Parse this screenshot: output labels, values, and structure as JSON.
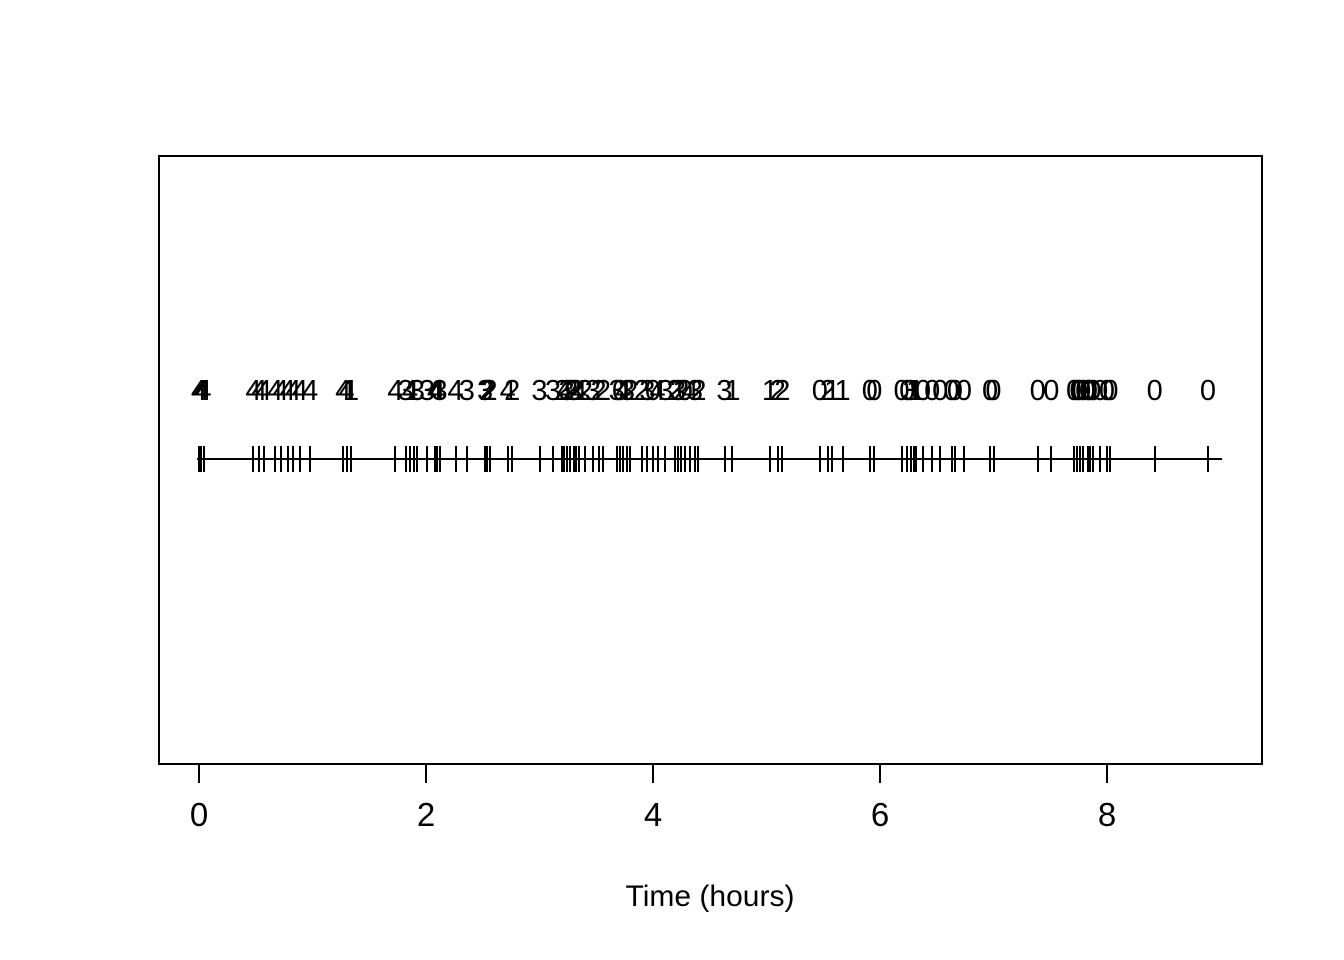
{
  "figure": {
    "background_color": "#ffffff",
    "ink_color": "#000000"
  },
  "chart_data": {
    "type": "scatter",
    "subtype": "event-rug-with-count-labels",
    "title": "",
    "xlabel": "Time (hours)",
    "ylabel": "",
    "xlim": [
      0,
      9
    ],
    "x_ticks": [
      0,
      2,
      4,
      6,
      8
    ],
    "grid": false,
    "legend": false,
    "baseline_range": [
      -0.02,
      9.01
    ],
    "x": [
      0.0,
      0.02,
      0.04,
      0.48,
      0.53,
      0.57,
      0.67,
      0.72,
      0.78,
      0.83,
      0.89,
      0.98,
      1.27,
      1.3,
      1.34,
      1.73,
      1.82,
      1.86,
      1.89,
      1.92,
      2.01,
      2.08,
      2.1,
      2.12,
      2.26,
      2.36,
      2.52,
      2.54,
      2.56,
      2.72,
      2.76,
      3.0,
      3.12,
      3.2,
      3.22,
      3.24,
      3.27,
      3.3,
      3.32,
      3.35,
      3.4,
      3.47,
      3.52,
      3.56,
      3.68,
      3.71,
      3.74,
      3.77,
      3.8,
      3.9,
      3.95,
      4.0,
      4.04,
      4.11,
      4.19,
      4.22,
      4.25,
      4.28,
      4.33,
      4.37,
      4.4,
      4.63,
      4.7,
      5.03,
      5.1,
      5.14,
      5.47,
      5.54,
      5.58,
      5.67,
      5.91,
      5.95,
      6.19,
      6.24,
      6.27,
      6.3,
      6.32,
      6.38,
      6.46,
      6.53,
      6.63,
      6.66,
      6.74,
      6.97,
      7.0,
      7.39,
      7.51,
      7.71,
      7.74,
      7.76,
      7.79,
      7.83,
      7.85,
      7.88,
      7.94,
      8.0,
      8.03,
      8.42,
      8.89
    ],
    "labels": [
      "4",
      "4",
      "4",
      "4",
      "4",
      "4",
      "4",
      "4",
      "4",
      "4",
      "4",
      "4",
      "4",
      "4",
      "1",
      "4",
      "3",
      "4",
      "1",
      "3",
      "3",
      "4",
      "4",
      "3",
      "4",
      "3",
      "3",
      "2",
      "2",
      "4",
      "2",
      "3",
      "3",
      "2",
      "4",
      "3",
      "2",
      "3",
      "2",
      "4",
      "2",
      "3",
      "2",
      "2",
      "3",
      "0",
      "4",
      "3",
      "2",
      "2",
      "3",
      "0",
      "4",
      "3",
      "2",
      "3",
      "2",
      "0",
      "4",
      "3",
      "2",
      "3",
      "1",
      "1",
      "2",
      "2",
      "0",
      "2",
      "1",
      "1",
      "0",
      "0",
      "0",
      "0",
      "3",
      "1",
      "1",
      "0",
      "0",
      "0",
      "0",
      "0",
      "0",
      "0",
      "0",
      "0",
      "0",
      "0",
      "0",
      "0",
      "0",
      "0",
      "0",
      "0",
      "0",
      "0",
      "0",
      "0",
      "0"
    ]
  }
}
